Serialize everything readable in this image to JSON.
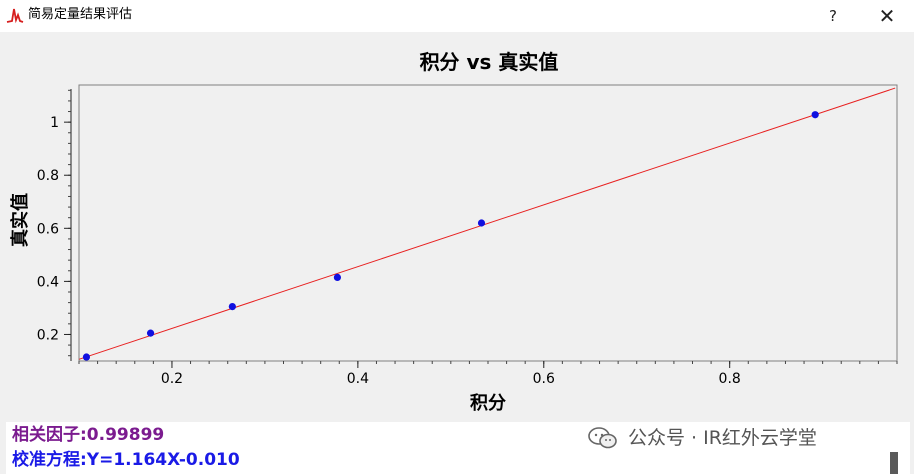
{
  "window": {
    "title": "简易定量结果评估",
    "help_label": "?",
    "close_label": "✕",
    "icon": "peak-icon"
  },
  "chart_data": {
    "type": "scatter",
    "title": "积分 vs 真实值",
    "xlabel": "积分",
    "ylabel": "真实值",
    "xlim": [
      0.1,
      0.98
    ],
    "ylim": [
      0.1,
      1.14
    ],
    "xticks": [
      0.2,
      0.4,
      0.6,
      0.8
    ],
    "xtick_labels": [
      "0.2",
      "0.4",
      "0.6",
      "0.8"
    ],
    "yticks": [
      0.2,
      0.4,
      0.6,
      0.8,
      1.0
    ],
    "ytick_labels": [
      "0.2",
      "0.4",
      "0.6",
      "0.8",
      "1"
    ],
    "points": [
      {
        "x": 0.108,
        "y": 0.115
      },
      {
        "x": 0.177,
        "y": 0.205
      },
      {
        "x": 0.265,
        "y": 0.305
      },
      {
        "x": 0.378,
        "y": 0.415
      },
      {
        "x": 0.533,
        "y": 0.62
      },
      {
        "x": 0.892,
        "y": 1.028
      }
    ],
    "fit": {
      "slope": 1.164,
      "intercept": -0.01,
      "x_range": [
        0.1,
        0.978
      ]
    },
    "point_color": "#1010e0",
    "fit_color": "#e82020",
    "grid": false
  },
  "results": {
    "correlation": "相关因子:0.99899",
    "equation": "校准方程:Y=1.164X-0.010"
  },
  "watermark": {
    "text": "公众号 · IR红外云学堂",
    "icon": "wechat-icon"
  }
}
